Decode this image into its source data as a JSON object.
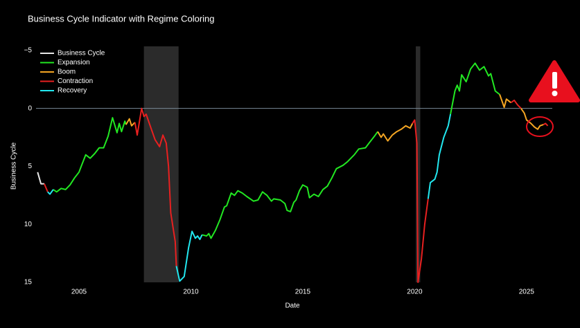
{
  "chart_data": {
    "type": "line",
    "title": "Business Cycle Indicator with Regime Coloring",
    "x_label": "Date",
    "y_label": "Business Cycle",
    "xlim": [
      2003.08,
      2026.15
    ],
    "xticks": [
      2005,
      2010,
      2015,
      2020,
      2025
    ],
    "ylim": [
      -5.35,
      15
    ],
    "y_reversed": true,
    "yticks": [
      {
        "value": -5,
        "label": "−5"
      },
      0,
      5,
      10,
      15
    ],
    "hline": 0,
    "shaded_regions": [
      [
        2007.9,
        2009.45
      ],
      [
        2020.05,
        2020.25
      ]
    ],
    "legend": "top-left",
    "series": [
      {
        "name": "Business Cycle",
        "color": "#e8e8e8",
        "x": [
          2003.15,
          2003.3,
          2003.45
        ],
        "values": [
          5.5,
          6.5,
          6.5
        ]
      },
      {
        "name": "Expansion",
        "color": "#22e822",
        "x": [
          2003.85,
          2004.0,
          2004.2,
          2004.4,
          2004.6,
          2004.8,
          2005.0,
          2005.1,
          2005.3,
          2005.5,
          2005.7,
          2005.9,
          2006.1,
          2006.3,
          2006.5,
          2006.7,
          2006.8,
          2006.9,
          2007.05,
          2007.1,
          null,
          2010.5,
          2010.7,
          2010.8,
          2010.9,
          2011.1,
          2011.3,
          2011.5,
          2011.6,
          2011.8,
          2011.95,
          2012.1,
          2012.3,
          2012.5,
          2012.8,
          2013.0,
          2013.2,
          2013.4,
          2013.6,
          2013.7,
          2014.0,
          2014.2,
          2014.3,
          2014.45,
          2014.6,
          2014.7,
          2014.85,
          2015.0,
          2015.2,
          2015.3,
          2015.5,
          2015.7,
          2015.9,
          2016.1,
          2016.3,
          2016.5,
          2016.8,
          2017.0,
          2017.3,
          2017.5,
          2017.8,
          2018.0,
          2018.2,
          2018.35,
          null,
          2021.6,
          2021.8,
          2021.9,
          2022.0,
          2022.1,
          2022.3,
          2022.5,
          2022.7,
          2022.9,
          2023.1,
          2023.3,
          2023.4,
          2023.6,
          2023.8
        ],
        "values": [
          7.0,
          7.2,
          6.9,
          7.0,
          6.6,
          6.0,
          5.5,
          5.0,
          4.0,
          4.3,
          3.9,
          3.4,
          3.4,
          2.4,
          0.8,
          2.1,
          1.3,
          2.0,
          1.1,
          1.4,
          null,
          10.9,
          11.0,
          10.8,
          11.2,
          10.5,
          9.6,
          8.5,
          8.4,
          7.3,
          7.5,
          7.1,
          7.3,
          7.6,
          8.0,
          7.9,
          7.2,
          7.5,
          8.0,
          7.8,
          7.9,
          8.2,
          8.8,
          8.9,
          8.1,
          7.9,
          7.1,
          6.6,
          6.8,
          7.7,
          7.4,
          7.6,
          7.0,
          6.7,
          6.0,
          5.2,
          4.9,
          4.6,
          4.0,
          3.5,
          3.4,
          2.9,
          2.4,
          2.0,
          null,
          0.5,
          -1.5,
          -2.0,
          -1.5,
          -2.9,
          -2.3,
          -3.4,
          -3.9,
          -3.3,
          -3.6,
          -2.8,
          -3.0,
          -1.5,
          -1.2
        ]
      },
      {
        "name": "Boom",
        "color": "#f5a623",
        "x": [
          2007.1,
          2007.25,
          2007.35,
          2007.5,
          null,
          2018.35,
          2018.5,
          2018.6,
          2018.8,
          2019.0,
          2019.2,
          2019.4,
          2019.6,
          2019.8,
          2019.9,
          null,
          2023.8,
          2024.0,
          2024.1,
          2024.3,
          null,
          2024.75,
          2024.9,
          2025.0,
          2025.2,
          2025.35,
          2025.5,
          2025.6,
          2025.75
        ],
        "values": [
          1.4,
          0.9,
          1.5,
          1.2,
          null,
          2.0,
          2.5,
          2.2,
          2.8,
          2.3,
          2.0,
          1.8,
          1.5,
          1.7,
          1.3,
          null,
          -1.2,
          -0.1,
          -0.8,
          -0.5,
          null,
          0.0,
          0.4,
          1.0,
          1.3,
          1.6,
          1.8,
          1.5,
          1.4
        ]
      },
      {
        "name": "Contraction",
        "color": "#e82020",
        "x": [
          2003.45,
          2003.6,
          null,
          2007.5,
          2007.6,
          2007.8,
          2007.9,
          2008.0,
          2008.2,
          2008.4,
          2008.6,
          2008.75,
          2008.9,
          2009.0,
          2009.1,
          2009.3,
          2009.35,
          null,
          2019.9,
          2020.0,
          2020.1,
          2020.15,
          2020.3,
          2020.45,
          2020.6,
          null,
          2024.3,
          2024.45,
          2024.6,
          2024.75,
          null,
          2025.75,
          2025.85,
          2025.95
        ],
        "values": [
          6.5,
          7.2,
          null,
          1.2,
          2.3,
          0.0,
          0.7,
          0.5,
          1.6,
          2.7,
          3.3,
          2.3,
          3.0,
          5.0,
          9.0,
          11.5,
          13.6,
          null,
          1.3,
          1.0,
          3.0,
          15.0,
          13.0,
          10.0,
          7.8,
          null,
          -0.5,
          -0.7,
          -0.3,
          0.0,
          null,
          1.4,
          1.3,
          1.5
        ]
      },
      {
        "name": "Recovery",
        "color": "#22e8f0",
        "x": [
          2003.6,
          2003.7,
          2003.85,
          null,
          2009.35,
          2009.5,
          2009.7,
          2009.9,
          2010.05,
          2010.2,
          2010.3,
          2010.4,
          2010.5,
          null,
          2020.6,
          2020.7,
          2020.9,
          2021.0,
          2021.1,
          2021.3,
          2021.5,
          2021.6
        ],
        "values": [
          7.2,
          7.4,
          7.0,
          null,
          13.6,
          14.9,
          14.5,
          12.0,
          10.6,
          11.2,
          11.0,
          11.3,
          10.9,
          null,
          7.8,
          6.4,
          6.1,
          5.5,
          4.0,
          2.5,
          1.5,
          0.5
        ]
      }
    ]
  }
}
